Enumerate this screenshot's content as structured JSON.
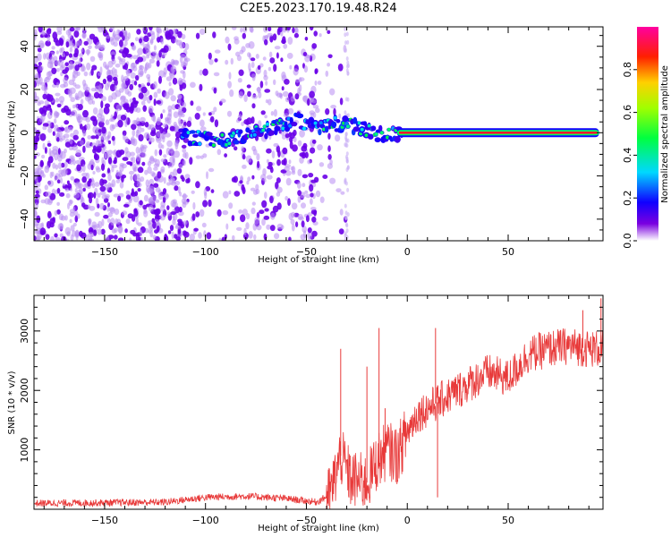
{
  "title": "C2E5.2023.170.19.48.R24",
  "chart_data": [
    {
      "type": "heatmap",
      "panel": "top",
      "xlabel": "Height of straight line (km)",
      "ylabel": "Frequency (Hz)",
      "xlim": [
        -185,
        97
      ],
      "ylim": [
        -50,
        49
      ],
      "xticks": [
        -150,
        -100,
        -50,
        0,
        50
      ],
      "yticks": [
        -40,
        -20,
        0,
        20,
        40
      ],
      "colorbar": {
        "label": "Normalized spectral amplitude",
        "range": [
          0,
          1
        ],
        "ticks": [
          "0.0",
          "0.2",
          "0.4",
          "0.6",
          "0.8"
        ],
        "colormap": "purple-blue-cyan-green-yellow-red-magenta"
      },
      "ridge_frequency_hz": [
        {
          "x": -110,
          "y": -2
        },
        {
          "x": -95,
          "y": -3
        },
        {
          "x": -80,
          "y": -2
        },
        {
          "x": -65,
          "y": 3
        },
        {
          "x": -55,
          "y": 6
        },
        {
          "x": -45,
          "y": 2
        },
        {
          "x": -35,
          "y": 4
        },
        {
          "x": -25,
          "y": 3
        },
        {
          "x": -15,
          "y": -1
        },
        {
          "x": 0,
          "y": 0
        },
        {
          "x": 95,
          "y": 0
        }
      ],
      "strong_band": {
        "x_from": -5,
        "x_to": 95,
        "frequency_hz": 0,
        "amplitude": 0.9
      },
      "noise_region": {
        "x_from": -185,
        "x_to": -30
      }
    },
    {
      "type": "line",
      "panel": "bottom",
      "xlabel": "Height of straight line (km)",
      "ylabel": "SNR (10 * v/v)",
      "xlim": [
        -185,
        97
      ],
      "ylim": [
        0,
        3600
      ],
      "xticks": [
        -150,
        -100,
        -50,
        0,
        50
      ],
      "yticks": [
        1000,
        2000,
        3000
      ],
      "color": "#e83a3a",
      "series": [
        {
          "values_trend": [
            {
              "x": -185,
              "y": 100
            },
            {
              "x": -150,
              "y": 110
            },
            {
              "x": -120,
              "y": 120
            },
            {
              "x": -100,
              "y": 200
            },
            {
              "x": -80,
              "y": 220
            },
            {
              "x": -60,
              "y": 180
            },
            {
              "x": -45,
              "y": 120
            },
            {
              "x": -38,
              "y": 250
            },
            {
              "x": -33,
              "y": 900
            },
            {
              "x": -28,
              "y": 500
            },
            {
              "x": -20,
              "y": 450
            },
            {
              "x": -15,
              "y": 800
            },
            {
              "x": -10,
              "y": 1000
            },
            {
              "x": -5,
              "y": 900
            },
            {
              "x": 0,
              "y": 1300
            },
            {
              "x": 5,
              "y": 1600
            },
            {
              "x": 10,
              "y": 1700
            },
            {
              "x": 15,
              "y": 1800
            },
            {
              "x": 20,
              "y": 1900
            },
            {
              "x": 30,
              "y": 2100
            },
            {
              "x": 40,
              "y": 2300
            },
            {
              "x": 50,
              "y": 2200
            },
            {
              "x": 60,
              "y": 2600
            },
            {
              "x": 70,
              "y": 2700
            },
            {
              "x": 80,
              "y": 2750
            },
            {
              "x": 90,
              "y": 2700
            },
            {
              "x": 97,
              "y": 2700
            }
          ],
          "spikes": [
            {
              "x": -33,
              "y": 2700
            },
            {
              "x": -20,
              "y": 2400
            },
            {
              "x": -14,
              "y": 3050
            },
            {
              "x": -11,
              "y": 1700
            },
            {
              "x": 14,
              "y": 3050
            },
            {
              "x": 15,
              "y": 200
            },
            {
              "x": 87,
              "y": 3350
            },
            {
              "x": 96,
              "y": 3550
            }
          ]
        }
      ]
    }
  ]
}
